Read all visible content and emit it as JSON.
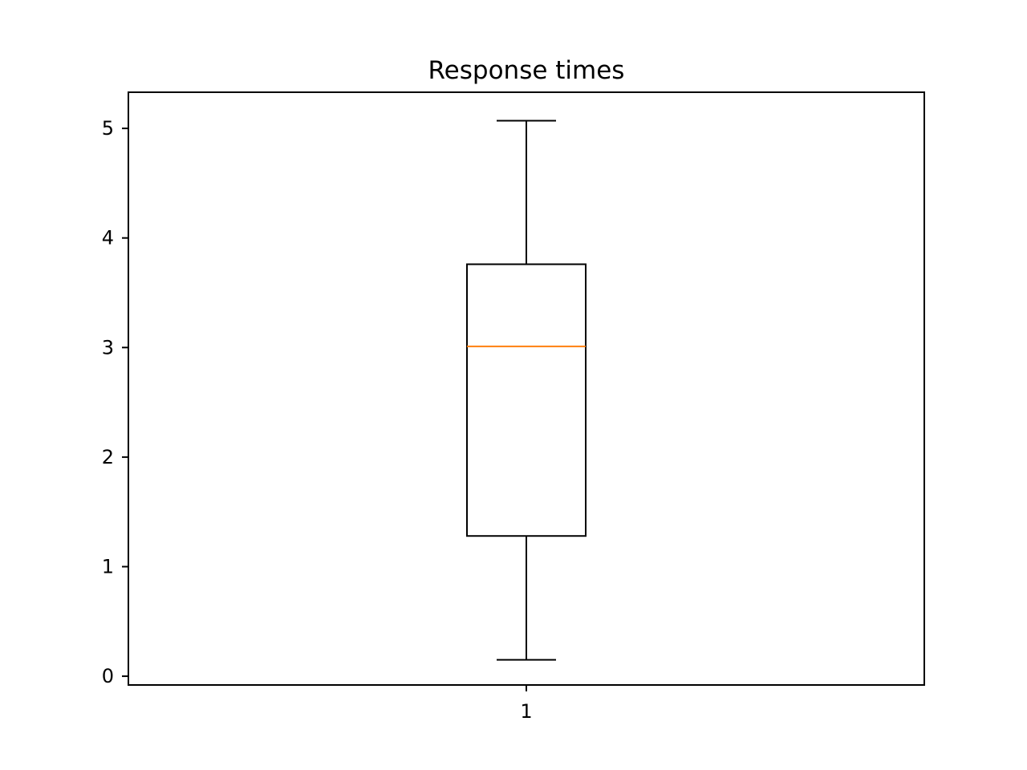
{
  "chart_data": {
    "type": "box",
    "title": "Response times",
    "xlabel": "",
    "ylabel": "",
    "categories": [
      "1"
    ],
    "boxes": [
      {
        "category": "1",
        "whisker_low": 0.15,
        "q1": 1.28,
        "median": 3.01,
        "q3": 3.76,
        "whisker_high": 5.07
      }
    ],
    "ylim": [
      -0.08,
      5.33
    ],
    "yticks": [
      0,
      1,
      2,
      3,
      4,
      5
    ],
    "ytick_labels": [
      "0",
      "1",
      "2",
      "3",
      "4",
      "5"
    ],
    "grid": false,
    "colors": {
      "box": "#000000",
      "median": "#ff7f0e",
      "axes": "#000000"
    }
  }
}
